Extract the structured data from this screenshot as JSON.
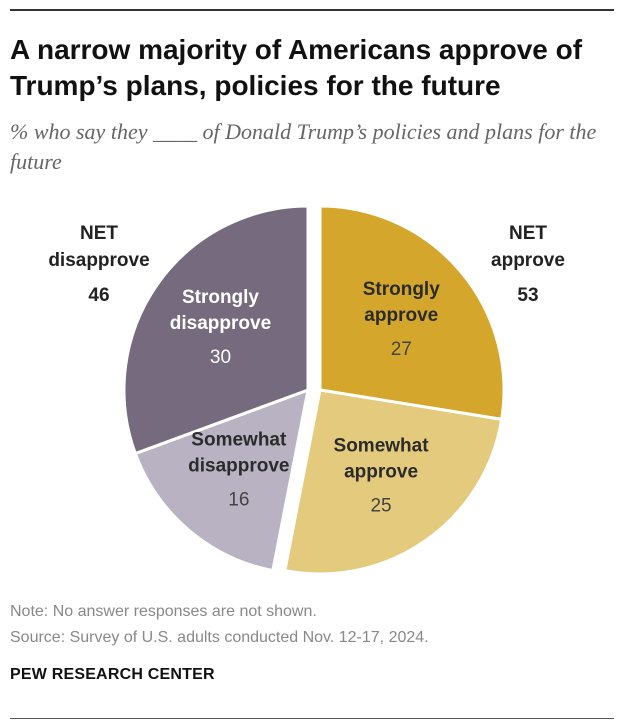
{
  "header": {
    "title": "A narrow majority of Americans approve of Trump’s plans, policies for the future",
    "subtitle": "% who say they ____ of Donald Trump’s policies and plans for the future"
  },
  "chart_data": {
    "type": "pie",
    "slices": [
      {
        "label_line1": "Strongly",
        "label_line2": "approve",
        "value": 27,
        "color": "#d4a72c",
        "text_color": "#2b2b2b",
        "value_color": "#444444"
      },
      {
        "label_line1": "Somewhat",
        "label_line2": "approve",
        "value": 25,
        "color": "#e3ca7d",
        "text_color": "#2b2b2b",
        "value_color": "#444444"
      },
      {
        "label_line1": "Somewhat",
        "label_line2": "disapprove",
        "value": 16,
        "color": "#b9b2c3",
        "text_color": "#2b2b2b",
        "value_color": "#444444"
      },
      {
        "label_line1": "Strongly",
        "label_line2": "disapprove",
        "value": 30,
        "color": "#756a7e",
        "text_color": "#ffffff",
        "value_color": "#ffffff"
      }
    ],
    "net_approve": {
      "line1": "NET",
      "line2": "approve",
      "value": 53
    },
    "net_disapprove": {
      "line1": "NET",
      "line2": "disapprove",
      "value": 46
    }
  },
  "footer": {
    "note": "Note: No answer responses are not shown.",
    "source": "Source: Survey of U.S. adults conducted Nov. 12-17, 2024.",
    "brand": "PEW RESEARCH CENTER"
  }
}
